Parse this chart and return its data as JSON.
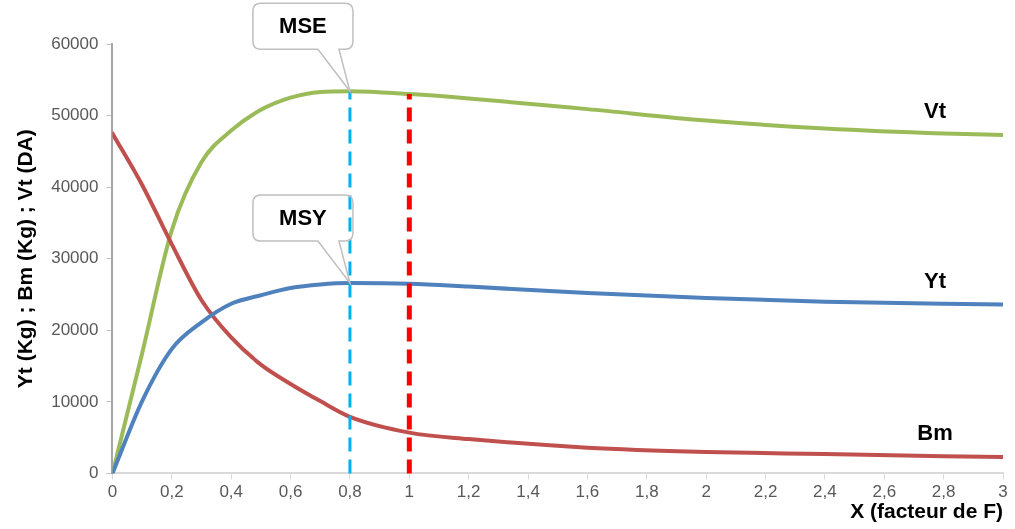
{
  "chart_data": {
    "type": "line",
    "xlabel": "X (facteur de F)",
    "ylabel": "Yt (Kg) ; Bm (Kg) ; Vt (DA)",
    "x": [
      0,
      0.1,
      0.2,
      0.3,
      0.4,
      0.5,
      0.6,
      0.7,
      0.8,
      1.0,
      1.2,
      1.6,
      2.0,
      2.4,
      2.8,
      3.0
    ],
    "series": [
      {
        "name": "Yt",
        "color": "#4f81bd",
        "values": [
          0,
          10100,
          17400,
          21100,
          23700,
          24900,
          25900,
          26400,
          26600,
          26500,
          26100,
          25200,
          24500,
          24000,
          23700,
          23600
        ]
      },
      {
        "name": "Bm",
        "color": "#c0504d",
        "values": [
          47500,
          40300,
          32000,
          24200,
          19000,
          15200,
          12500,
          10100,
          7900,
          5700,
          4800,
          3600,
          3000,
          2700,
          2400,
          2300
        ]
      },
      {
        "name": "Vt",
        "color": "#9bbb59",
        "values": [
          0,
          16800,
          34000,
          43500,
          47900,
          50800,
          52500,
          53300,
          53400,
          53000,
          52400,
          50900,
          49300,
          48200,
          47500,
          47300
        ]
      }
    ],
    "xlim": [
      0,
      3
    ],
    "xticks": [
      0,
      {
        "value": 0.2,
        "label": "0,2"
      },
      {
        "value": 0.4,
        "label": "0,4"
      },
      {
        "value": 0.6,
        "label": "0,6"
      },
      {
        "value": 0.8,
        "label": "0,8"
      },
      1,
      {
        "value": 1.2,
        "label": "1,2"
      },
      {
        "value": 1.4,
        "label": "1,4"
      },
      {
        "value": 1.6,
        "label": "1,6"
      },
      {
        "value": 1.8,
        "label": "1,8"
      },
      2,
      {
        "value": 2.2,
        "label": "2,2"
      },
      {
        "value": 2.4,
        "label": "2,4"
      },
      {
        "value": 2.6,
        "label": "2,6"
      },
      {
        "value": 2.8,
        "label": "2,8"
      },
      3
    ],
    "ylim": [
      0,
      60000
    ],
    "yticks": [
      0,
      10000,
      20000,
      30000,
      40000,
      50000,
      60000
    ],
    "ref_lines": [
      {
        "axis": "x",
        "value": 0.8,
        "color": "#00b0f0",
        "line_style": "dashed"
      },
      {
        "axis": "x",
        "value": 1,
        "color": "#ff0000",
        "line_style": "dashed"
      }
    ],
    "annotations": [
      {
        "text": "MSE",
        "x": 0.8,
        "y": 53400
      },
      {
        "text": "MSY",
        "x": 0.8,
        "y": 26600
      }
    ],
    "grid": false,
    "legend": false,
    "marker": "none",
    "line_style": "solid"
  }
}
